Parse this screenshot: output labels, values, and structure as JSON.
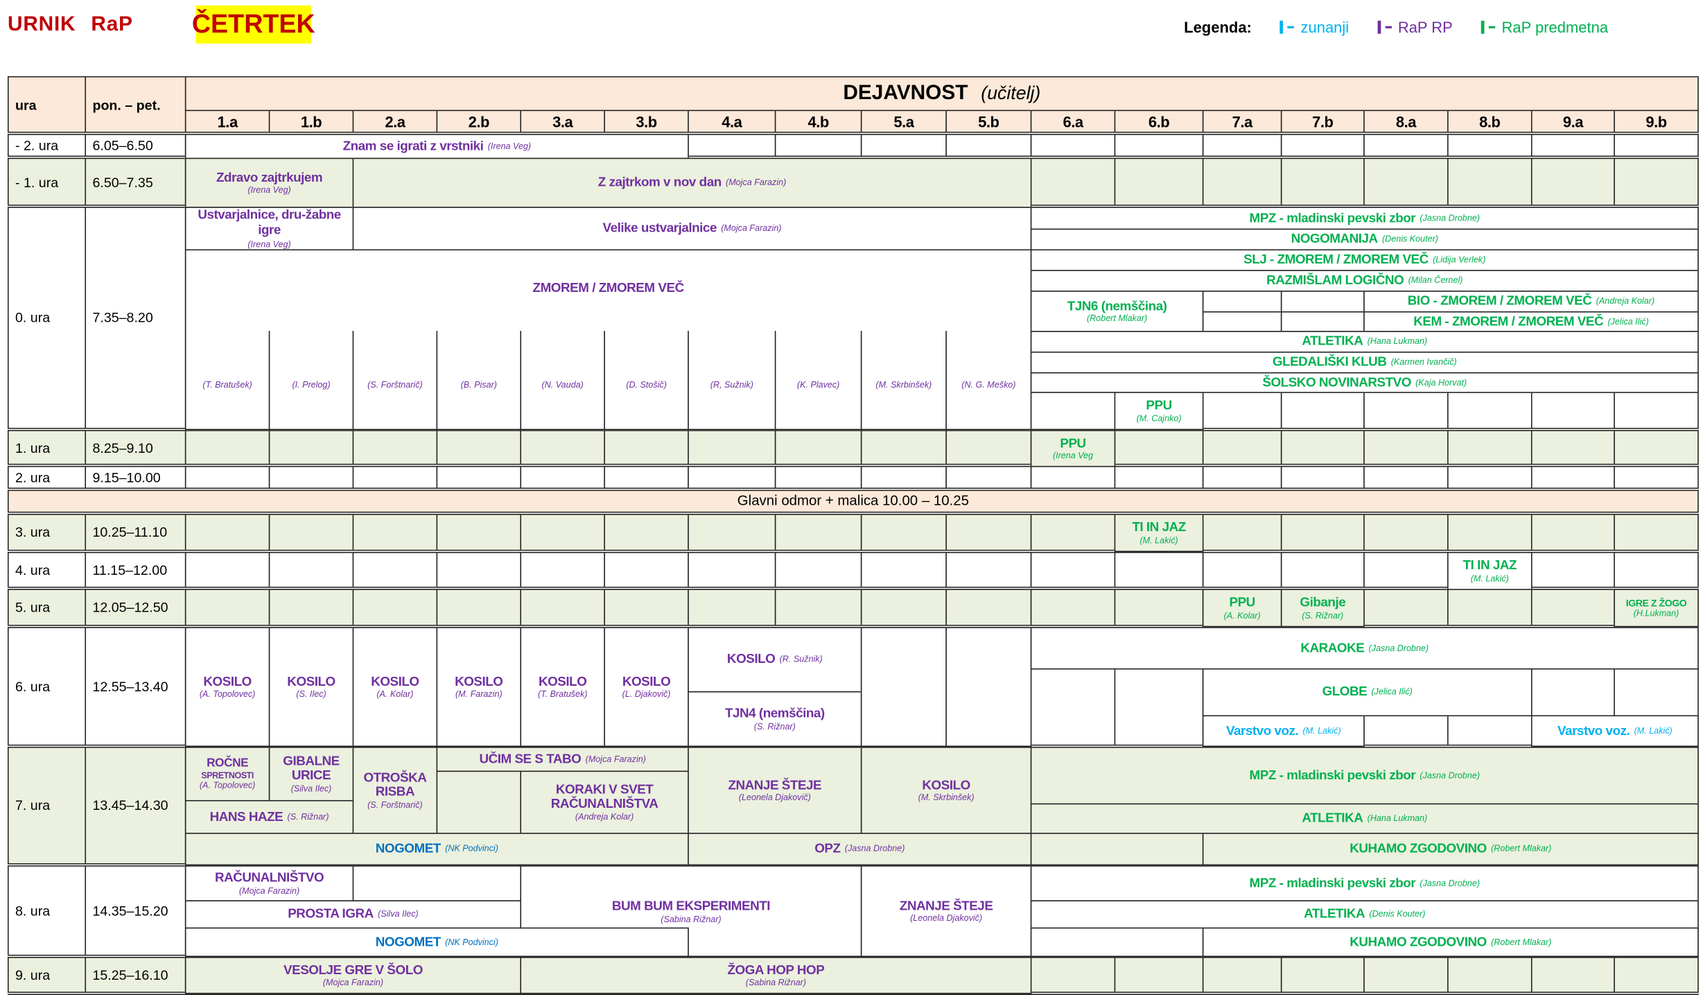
{
  "title": {
    "urnik": "URNIK",
    "rap": "RaP",
    "day": "ČETRTEK"
  },
  "legend": {
    "label": "Legenda:",
    "items": [
      {
        "label": "zunanji",
        "kind": "zunanji"
      },
      {
        "label": "RaP RP",
        "kind": "rp"
      },
      {
        "label": "RaP predmetna",
        "kind": "predmetna"
      }
    ]
  },
  "colors": {
    "zunanji": "#00B0F0",
    "rp": "#7030A0",
    "predmetna": "#00B050",
    "nogomet": "#0070C0",
    "green_bg": "#EBF1DE",
    "header_bg": "#FDE9D9",
    "day_bg": "#FFFF00",
    "title": "#C00000"
  },
  "header": {
    "ura": "ura",
    "time": "pon. – pet.",
    "dejavnost": "DEJAVNOST",
    "ucitelj": "(učitelj)",
    "classes": [
      "1.a",
      "1.b",
      "2.a",
      "2.b",
      "3.a",
      "3.b",
      "4.a",
      "4.b",
      "5.a",
      "5.b",
      "6.a",
      "6.b",
      "7.a",
      "7.b",
      "8.a",
      "8.b",
      "9.a",
      "9.b"
    ]
  },
  "rows": [
    {
      "ura": "- 2. ura",
      "time": "6.05–6.50"
    },
    {
      "ura": "- 1. ura",
      "time": "6.50–7.35"
    },
    {
      "ura": "0. ura",
      "time": "7.35–8.20"
    },
    {
      "ura": "1. ura",
      "time": "8.25–9.10"
    },
    {
      "ura": "2. ura",
      "time": "9.15–10.00"
    },
    {
      "ura": "3. ura",
      "time": "10.25–11.10"
    },
    {
      "ura": "4. ura",
      "time": "11.15–12.00"
    },
    {
      "ura": "5. ura",
      "time": "12.05–12.50"
    },
    {
      "ura": "6. ura",
      "time": "12.55–13.40"
    },
    {
      "ura": "7. ura",
      "time": "13.45–14.30"
    },
    {
      "ura": "8. ura",
      "time": "14.35–15.20"
    },
    {
      "ura": "9. ura",
      "time": "15.25–16.10"
    }
  ],
  "break": "Glavni odmor + malica 10.00 – 10.25",
  "cells": {
    "znam": {
      "t": "Znam se igrati z vrstniki",
      "u": "(Irena Veg)",
      "k": "rp"
    },
    "zdravo": {
      "t": "Zdravo zajtrkujem",
      "u": "(Irena Veg)",
      "k": "rp"
    },
    "zajtrkom": {
      "t": "Z zajtrkom v nov dan",
      "u": "(Mojca Farazin)",
      "k": "rp"
    },
    "ustv": {
      "t": "Ustvarjalnice, dru-žabne igre",
      "u": "(Irena Veg)",
      "k": "rp"
    },
    "velike": {
      "t": "Velike ustvarjalnice",
      "u": "(Mojca Farazin)",
      "k": "rp"
    },
    "zmorem": {
      "t": "ZMOREM / ZMOREM VEČ",
      "k": "rp"
    },
    "zm0": {
      "u": "(T. Bratušek)",
      "k": "rp"
    },
    "zm1": {
      "u": "(I. Prelog)",
      "k": "rp"
    },
    "zm2": {
      "u": "(S. Forštnarič)",
      "k": "rp"
    },
    "zm3": {
      "u": "(B. Pisar)",
      "k": "rp"
    },
    "zm4": {
      "u": "(N. Vauda)",
      "k": "rp"
    },
    "zm5": {
      "u": "(D. Stošič)",
      "k": "rp"
    },
    "zm6": {
      "u": "(R, Sužnik)",
      "k": "rp"
    },
    "zm7": {
      "u": "(K. Plavec)",
      "k": "rp"
    },
    "zm8": {
      "u": "(M. Skrbinšek)",
      "k": "rp"
    },
    "zm9": {
      "u": "(N. G. Meško)",
      "k": "rp"
    },
    "mpz0": {
      "t": "MPZ - mladinski pevski zbor",
      "u": "(Jasna Drobne)",
      "k": "predmetna"
    },
    "nogomanija": {
      "t": "NOGOMANIJA",
      "u": "(Denis Kouter)",
      "k": "predmetna"
    },
    "slj": {
      "t": "SLJ - ZMOREM / ZMOREM VEČ",
      "u": "(Lidija Verlek)",
      "k": "predmetna"
    },
    "razmislam": {
      "t": "RAZMIŠLAM LOGIČNO",
      "u": "(Milan Černel)",
      "k": "predmetna"
    },
    "tjn6": {
      "t": "TJN6 (nemščina)",
      "u": "(Robert Mlakar)",
      "k": "predmetna"
    },
    "bio": {
      "t": "BIO - ZMOREM / ZMOREM VEČ",
      "u": "(Andreja Kolar)",
      "k": "predmetna"
    },
    "kem": {
      "t": "KEM - ZMOREM / ZMOREM VEČ",
      "u": "(Jelica Ilić)",
      "k": "predmetna"
    },
    "atletika0": {
      "t": "ATLETIKA",
      "u": "(Hana Lukman)",
      "k": "predmetna"
    },
    "gledaliski": {
      "t": "GLEDALIŠKI KLUB",
      "u": "(Karmen Ivančič)",
      "k": "predmetna"
    },
    "novinarstvo": {
      "t": "ŠOLSKO NOVINARSTVO",
      "u": "(Kaja Horvat)",
      "k": "predmetna"
    },
    "ppu0": {
      "t": "PPU",
      "u": "(M. Cajnko)",
      "k": "predmetna"
    },
    "ppu1": {
      "t": "PPU",
      "u": "(Irena Veg",
      "k": "predmetna"
    },
    "tiinjaz3": {
      "t": "TI IN JAZ",
      "u": "(M. Lakić)",
      "k": "predmetna"
    },
    "tiinjaz4": {
      "t": "TI IN JAZ",
      "u": "(M. Lakić)",
      "k": "predmetna"
    },
    "ppu5": {
      "t": "PPU",
      "u": "(A. Kolar)",
      "k": "predmetna"
    },
    "gibanje": {
      "t": "Gibanje",
      "u": "(S. Rižnar)",
      "k": "predmetna"
    },
    "igrezzogo": {
      "t": "IGRE Z ŽOGO",
      "u": "(H.Lukman)",
      "k": "predmetna"
    },
    "kos0": {
      "t": "KOSILO",
      "u": "(A. Topolovec)",
      "k": "rp"
    },
    "kos1": {
      "t": "KOSILO",
      "u": "(S. Ilec)",
      "k": "rp"
    },
    "kos2": {
      "t": "KOSILO",
      "u": "(A. Kolar)",
      "k": "rp"
    },
    "kos3": {
      "t": "KOSILO",
      "u": "(M. Farazin)",
      "k": "rp"
    },
    "kos4": {
      "t": "KOSILO",
      "u": "(T. Bratušek)",
      "k": "rp"
    },
    "kos5": {
      "t": "KOSILO",
      "u": "(L. Djakovič)",
      "k": "rp"
    },
    "kos6": {
      "t": "KOSILO",
      "u": "(R. Sužnik)",
      "k": "rp"
    },
    "tjn4": {
      "t": "TJN4 (nemščina)",
      "u": "(S. Rižnar)",
      "k": "rp"
    },
    "karaoke": {
      "t": "KARAOKE",
      "u": "(Jasna Drobne)",
      "k": "predmetna"
    },
    "globe": {
      "t": "GLOBE",
      "u": "(Jelica Ilić)",
      "k": "predmetna"
    },
    "varstvo1": {
      "t": "Varstvo voz.",
      "u": "(M. Lakić)",
      "k": "zunanji"
    },
    "varstvo2": {
      "t": "Varstvo voz.",
      "u": "(M. Lakić)",
      "k": "zunanji"
    },
    "rocne": {
      "t": "ROČNE",
      "t2": "SPRETNOSTI",
      "u": "(A. Topolovec)",
      "k": "rp"
    },
    "gibalne": {
      "t": "GIBALNE URICE",
      "u": "(Silva Ilec)",
      "k": "rp"
    },
    "hanshaze": {
      "t": "HANS HAZE",
      "u": "(S. Rižnar)",
      "k": "rp"
    },
    "otroska": {
      "t": "OTROŠKA RISBA",
      "u": "(S. Forštnarič)",
      "k": "rp"
    },
    "ucimse": {
      "t": "UČIM SE S TABO",
      "u": "(Mojca Farazin)",
      "k": "rp"
    },
    "koraki": {
      "t": "KORAKI V SVET RAČUNALNIŠTVA",
      "u": "(Andreja Kolar)",
      "k": "rp"
    },
    "znanje7": {
      "t": "ZNANJE ŠTEJE",
      "u": "(Leonela Djakovič)",
      "k": "rp"
    },
    "kos7": {
      "t": "KOSILO",
      "u": "(M. Skrbinšek)",
      "k": "rp"
    },
    "nogomet7": {
      "t": "NOGOMET",
      "u": "(NK Podvinci)",
      "k": "nogomet"
    },
    "opz": {
      "t": "OPZ",
      "u": "(Jasna Drobne)",
      "k": "rp"
    },
    "mpz7": {
      "t": "MPZ - mladinski pevski zbor",
      "u": "(Jasna Drobne)",
      "k": "predmetna"
    },
    "atletika7": {
      "t": "ATLETIKA",
      "u": "(Hana Lukman)",
      "k": "predmetna"
    },
    "kuhamo7": {
      "t": "KUHAMO ZGODOVINO",
      "u": "(Robert Mlakar)",
      "k": "predmetna"
    },
    "racunalnistvo": {
      "t": "RAČUNALNIŠTVO",
      "u": "(Mojca Farazin)",
      "k": "rp"
    },
    "prosta": {
      "t": "PROSTA  IGRA",
      "u": "(Silva Ilec)",
      "k": "rp"
    },
    "bumbum": {
      "t": "BUM BUM EKSPERIMENTI",
      "u": "(Sabina Rižnar)",
      "k": "rp"
    },
    "znanje8": {
      "t": "ZNANJE ŠTEJE",
      "u": "(Leonela Djakovič)",
      "k": "rp"
    },
    "nogomet8": {
      "t": "NOGOMET",
      "u": "(NK Podvinci)",
      "k": "nogomet"
    },
    "mpz8": {
      "t": "MPZ - mladinski pevski zbor",
      "u": "(Jasna Drobne)",
      "k": "predmetna"
    },
    "atletika8": {
      "t": "ATLETIKA",
      "u": "(Denis Kouter)",
      "k": "predmetna"
    },
    "kuhamo8": {
      "t": "KUHAMO ZGODOVINO",
      "u": "(Robert Mlakar)",
      "k": "predmetna"
    },
    "vesolje": {
      "t": "VESOLJE GRE V ŠOLO",
      "u": "(Mojca Farazin)",
      "k": "rp"
    },
    "zoga": {
      "t": "ŽOGA HOP HOP",
      "u": "(Sabina Rižnar)",
      "k": "rp"
    }
  }
}
